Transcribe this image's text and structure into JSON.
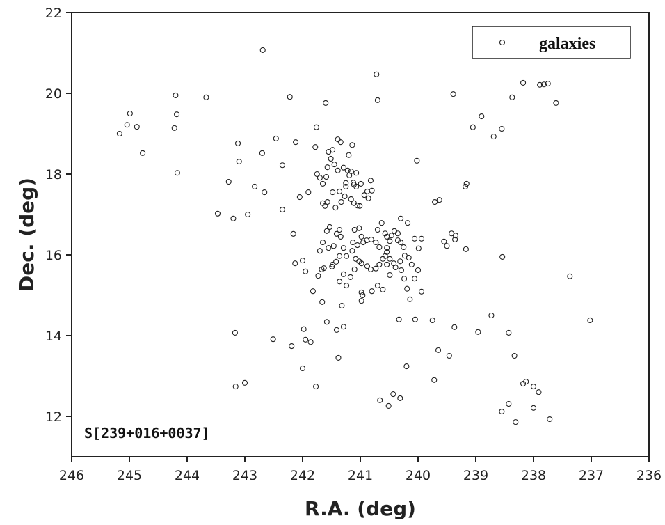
{
  "chart_data": {
    "type": "scatter",
    "x_label": "R.A. (deg)",
    "y_label": "Dec. (deg)",
    "annotation": "S[239+016+0037]",
    "legend_position": "upper right",
    "series": [
      {
        "name": "galaxies",
        "color": "#222222",
        "x": [
          245.17,
          244.99,
          245.04,
          244.87,
          244.77,
          244.2,
          244.18,
          244.22,
          244.17,
          243.67,
          242.69,
          242.22,
          243.12,
          243.1,
          242.7,
          243.28,
          242.83,
          242.66,
          242.46,
          242.35,
          242.12,
          243.47,
          242.95,
          243.2,
          242.35,
          242.05,
          242.16,
          242.13,
          242.0,
          241.95,
          243.17,
          242.51,
          242.19,
          241.98,
          241.95,
          241.86,
          242.0,
          243.16,
          243.0,
          241.77,
          241.76,
          241.6,
          240.72,
          240.7,
          240.02,
          241.73,
          241.82,
          241.66,
          241.58,
          241.41,
          241.29,
          241.38,
          241.32,
          240.66,
          240.51,
          240.43,
          240.31,
          240.2,
          240.33,
          240.05,
          239.75,
          239.65,
          239.72,
          239.46,
          239.37,
          238.96,
          238.73,
          238.43,
          238.33,
          238.55,
          238.43,
          238.31,
          238.18,
          238.13,
          238.0,
          237.91,
          238.0,
          237.72,
          237.02,
          237.37,
          238.54,
          239.17,
          239.39,
          239.05,
          238.9,
          238.69,
          238.55,
          238.37,
          238.18,
          237.89,
          237.82,
          237.75,
          237.61,
          239.63,
          239.71,
          239.18,
          239.16,
          239.55,
          239.5,
          239.42,
          239.35,
          239.36,
          241.78,
          241.75,
          241.7,
          241.65,
          241.55,
          241.48,
          241.57,
          241.51,
          241.39,
          241.34,
          241.45,
          241.29,
          241.2,
          241.14,
          241.19,
          241.25,
          241.25,
          241.36,
          241.48,
          241.57,
          241.61,
          241.43,
          241.33,
          241.27,
          241.16,
          241.11,
          241.01,
          240.93,
          240.88,
          240.86,
          240.82,
          240.8,
          241.07,
          240.99,
          241.12,
          241.07,
          241.9,
          241.65,
          241.59,
          241.39,
          241.22,
          241.05,
          241.16,
          241.11,
          241.65,
          241.58,
          241.53,
          241.41,
          241.36,
          241.34,
          241.46,
          241.55,
          241.7,
          241.29,
          241.36,
          241.48,
          241.63,
          241.67,
          241.49,
          241.42,
          241.13,
          241.05,
          240.98,
          240.95,
          240.89,
          241.02,
          241.1,
          240.81,
          240.73,
          240.67,
          240.7,
          240.63,
          240.57,
          240.54,
          240.49,
          240.46,
          240.41,
          240.35,
          240.35,
          240.3,
          240.25,
          240.18,
          240.3,
          240.06,
          239.99,
          239.94,
          240.23,
          240.31,
          240.42,
          240.49,
          240.57,
          240.61,
          240.67,
          240.73,
          240.82,
          240.88,
          240.98,
          241.02,
          241.08,
          241.14,
          241.24,
          241.29,
          241.36,
          241.24,
          241.17,
          241.1,
          240.98,
          240.96,
          240.98,
          240.8,
          240.61,
          240.7,
          240.49,
          240.39,
          240.29,
          240.24,
          240.19,
          240.14,
          240.06,
          240.0,
          239.94,
          240.16,
          240.11,
          240.54,
          240.54,
          240.54
        ],
        "y": [
          19.0,
          19.5,
          19.22,
          19.17,
          18.52,
          19.95,
          19.48,
          19.14,
          18.03,
          19.9,
          21.07,
          19.91,
          18.76,
          18.31,
          18.52,
          17.81,
          17.69,
          17.55,
          18.88,
          18.22,
          18.79,
          17.02,
          17.0,
          16.9,
          17.12,
          17.43,
          16.52,
          15.79,
          15.86,
          15.59,
          14.07,
          13.91,
          13.74,
          14.16,
          13.9,
          13.84,
          13.19,
          12.74,
          12.83,
          12.74,
          19.16,
          19.76,
          20.47,
          19.83,
          18.33,
          15.48,
          15.1,
          14.83,
          14.34,
          14.14,
          14.22,
          13.45,
          14.74,
          12.4,
          12.26,
          12.55,
          12.45,
          13.24,
          14.4,
          14.4,
          14.38,
          13.64,
          12.9,
          13.5,
          14.21,
          14.09,
          14.5,
          14.07,
          13.5,
          12.12,
          12.31,
          11.86,
          12.81,
          12.86,
          12.74,
          12.6,
          12.21,
          11.93,
          14.38,
          15.47,
          15.95,
          16.14,
          19.98,
          19.16,
          19.43,
          18.93,
          19.12,
          19.9,
          20.26,
          20.21,
          20.22,
          20.24,
          19.76,
          17.36,
          17.31,
          17.69,
          17.76,
          16.33,
          16.22,
          16.53,
          16.48,
          16.38,
          18.67,
          18.0,
          17.91,
          17.76,
          18.55,
          18.6,
          18.17,
          18.38,
          18.86,
          18.79,
          18.24,
          18.16,
          18.47,
          18.72,
          17.97,
          17.78,
          17.69,
          17.57,
          17.55,
          17.31,
          17.21,
          17.17,
          17.31,
          17.45,
          17.38,
          17.28,
          17.21,
          17.48,
          17.57,
          17.4,
          17.84,
          17.59,
          18.03,
          17.76,
          17.79,
          17.69,
          17.55,
          17.28,
          17.93,
          18.09,
          18.09,
          17.22,
          18.07,
          17.74,
          16.31,
          16.59,
          16.69,
          16.52,
          16.62,
          16.45,
          16.22,
          16.17,
          16.1,
          16.17,
          15.97,
          15.76,
          15.67,
          15.64,
          15.71,
          15.83,
          16.31,
          16.24,
          16.45,
          16.31,
          16.36,
          16.66,
          16.62,
          16.38,
          16.31,
          16.19,
          16.62,
          16.79,
          16.53,
          16.45,
          16.34,
          16.48,
          16.59,
          16.53,
          16.36,
          16.31,
          16.19,
          16.79,
          16.9,
          16.4,
          16.16,
          16.4,
          15.98,
          15.84,
          15.79,
          15.9,
          15.97,
          15.9,
          15.76,
          15.66,
          15.64,
          15.72,
          15.79,
          15.84,
          15.9,
          16.1,
          15.97,
          15.52,
          15.34,
          15.24,
          15.45,
          15.64,
          15.07,
          15.0,
          14.86,
          15.1,
          15.14,
          15.24,
          15.5,
          15.69,
          15.62,
          15.41,
          15.16,
          14.9,
          15.41,
          15.62,
          15.09,
          15.93,
          15.76,
          16.17,
          16.07,
          15.76
        ]
      }
    ],
    "xlim": [
      246,
      236
    ],
    "xticks": [
      246,
      245,
      244,
      243,
      242,
      241,
      240,
      239,
      238,
      237,
      236
    ],
    "ylim": [
      11,
      22
    ],
    "yticks": [
      12,
      14,
      16,
      18,
      20,
      22
    ]
  }
}
